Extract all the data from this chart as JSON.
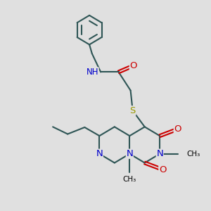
{
  "bg": "#e0e0e0",
  "bc": "#2e5555",
  "bw": 1.5,
  "dbo": 0.06,
  "fs": 8.5,
  "fs_sm": 7.5,
  "NC": "#0000cc",
  "OC": "#cc0000",
  "SC": "#999900",
  "R": 0.8,
  "Rcx": 6.8,
  "Rcy": 3.4,
  "xlim": [
    0.2,
    9.8
  ],
  "ylim": [
    0.5,
    9.8
  ]
}
